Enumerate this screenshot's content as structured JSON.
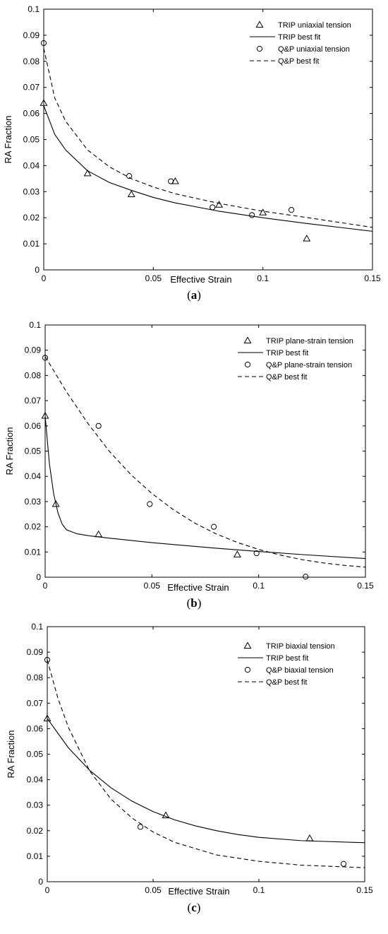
{
  "chart_data": [
    {
      "type": "scatter",
      "panel_label": "a",
      "xlabel": "Effective Strain",
      "ylabel": "RA Fraction",
      "xlim": [
        0,
        0.15
      ],
      "ylim": [
        0,
        0.1
      ],
      "x_ticks": [
        "0",
        "0.05",
        "0.1",
        "0.15"
      ],
      "y_ticks": [
        "0",
        "0.01",
        "0.02",
        "0.03",
        "0.04",
        "0.05",
        "0.06",
        "0.07",
        "0.08",
        "0.09",
        "0.1"
      ],
      "grid": false,
      "legend_position": "top-right",
      "series": [
        {
          "name": "TRIP uniaxial tension",
          "kind": "marker",
          "marker": "triangle",
          "x": [
            0,
            0.02,
            0.04,
            0.06,
            0.08,
            0.1,
            0.12
          ],
          "y": [
            0.064,
            0.037,
            0.029,
            0.034,
            0.025,
            0.022,
            0.012
          ]
        },
        {
          "name": "TRIP best fit",
          "kind": "line",
          "dash": "solid",
          "x": [
            0,
            0.005,
            0.01,
            0.02,
            0.03,
            0.04,
            0.05,
            0.06,
            0.08,
            0.1,
            0.12,
            0.15
          ],
          "y": [
            0.063,
            0.052,
            0.046,
            0.038,
            0.0335,
            0.0305,
            0.0278,
            0.0257,
            0.0225,
            0.02,
            0.0178,
            0.0148
          ]
        },
        {
          "name": "Q&P uniaxial tension",
          "kind": "marker",
          "marker": "circle",
          "x": [
            0,
            0.039,
            0.058,
            0.077,
            0.095,
            0.113
          ],
          "y": [
            0.087,
            0.036,
            0.034,
            0.024,
            0.021,
            0.023
          ]
        },
        {
          "name": "Q&P best fit",
          "kind": "line",
          "dash": "dashed",
          "x": [
            0,
            0.005,
            0.01,
            0.02,
            0.03,
            0.04,
            0.05,
            0.06,
            0.08,
            0.1,
            0.12,
            0.15
          ],
          "y": [
            0.085,
            0.066,
            0.057,
            0.046,
            0.0395,
            0.035,
            0.0318,
            0.0292,
            0.0255,
            0.0225,
            0.0201,
            0.0163
          ]
        }
      ]
    },
    {
      "type": "scatter",
      "panel_label": "b",
      "xlabel": "Effective Strain",
      "ylabel": "RA Fraction",
      "xlim": [
        0,
        0.15
      ],
      "ylim": [
        0,
        0.1
      ],
      "x_ticks": [
        "0",
        "0.05",
        "0.1",
        "0.15"
      ],
      "y_ticks": [
        "0",
        "0.01",
        "0.02",
        "0.03",
        "0.04",
        "0.05",
        "0.06",
        "0.07",
        "0.08",
        "0.09",
        "0.1"
      ],
      "grid": false,
      "legend_position": "top-right",
      "series": [
        {
          "name": "TRIP plane-strain tension",
          "kind": "marker",
          "marker": "triangle",
          "x": [
            0,
            0.005,
            0.025,
            0.09
          ],
          "y": [
            0.064,
            0.029,
            0.017,
            0.009
          ]
        },
        {
          "name": "TRIP best fit",
          "kind": "line",
          "dash": "solid",
          "x": [
            0,
            0.002,
            0.004,
            0.006,
            0.008,
            0.01,
            0.015,
            0.02,
            0.03,
            0.05,
            0.08,
            0.1,
            0.12,
            0.15
          ],
          "y": [
            0.064,
            0.045,
            0.033,
            0.0255,
            0.021,
            0.0188,
            0.0172,
            0.0165,
            0.0155,
            0.0137,
            0.0115,
            0.0102,
            0.009,
            0.0074
          ]
        },
        {
          "name": "Q&P plane-strain tension",
          "kind": "marker",
          "marker": "circle",
          "x": [
            0,
            0.025,
            0.049,
            0.079,
            0.099,
            0.122
          ],
          "y": [
            0.087,
            0.06,
            0.029,
            0.02,
            0.0095,
            0.0002
          ]
        },
        {
          "name": "Q&P best fit",
          "kind": "line",
          "dash": "dashed",
          "x": [
            0,
            0.01,
            0.02,
            0.03,
            0.04,
            0.05,
            0.06,
            0.07,
            0.08,
            0.09,
            0.1,
            0.11,
            0.12,
            0.13,
            0.14,
            0.15
          ],
          "y": [
            0.0875,
            0.0735,
            0.061,
            0.05,
            0.0408,
            0.0332,
            0.0268,
            0.0215,
            0.0172,
            0.0138,
            0.011,
            0.0088,
            0.007,
            0.0057,
            0.0047,
            0.004
          ]
        }
      ]
    },
    {
      "type": "scatter",
      "panel_label": "c",
      "xlabel": "Effective Strain",
      "ylabel": "RA Fraction",
      "xlim": [
        0,
        0.15
      ],
      "ylim": [
        0,
        0.1
      ],
      "x_ticks": [
        "0",
        "0.05",
        "0.1",
        "0.15"
      ],
      "y_ticks": [
        "0",
        "0.01",
        "0.02",
        "0.03",
        "0.04",
        "0.05",
        "0.06",
        "0.07",
        "0.08",
        "0.09",
        "0.1"
      ],
      "grid": false,
      "legend_position": "top-right",
      "series": [
        {
          "name": "TRIP biaxial tension",
          "kind": "marker",
          "marker": "triangle",
          "x": [
            0,
            0.056,
            0.124
          ],
          "y": [
            0.064,
            0.026,
            0.017
          ]
        },
        {
          "name": "TRIP best fit",
          "kind": "line",
          "dash": "solid",
          "x": [
            0,
            0.01,
            0.02,
            0.03,
            0.04,
            0.05,
            0.06,
            0.07,
            0.08,
            0.09,
            0.1,
            0.12,
            0.15
          ],
          "y": [
            0.064,
            0.0525,
            0.0437,
            0.0369,
            0.0316,
            0.0275,
            0.0243,
            0.0219,
            0.02,
            0.0185,
            0.0174,
            0.0161,
            0.0153
          ]
        },
        {
          "name": "Q&P biaxial tension",
          "kind": "marker",
          "marker": "circle",
          "x": [
            0,
            0.044,
            0.14
          ],
          "y": [
            0.087,
            0.0215,
            0.007
          ]
        },
        {
          "name": "Q&P best fit",
          "kind": "line",
          "dash": "dashed",
          "x": [
            0,
            0.005,
            0.01,
            0.02,
            0.03,
            0.04,
            0.05,
            0.06,
            0.08,
            0.1,
            0.12,
            0.15
          ],
          "y": [
            0.087,
            0.072,
            0.0605,
            0.0435,
            0.0325,
            0.025,
            0.0195,
            0.0155,
            0.0105,
            0.008,
            0.0065,
            0.0055
          ]
        }
      ]
    }
  ]
}
